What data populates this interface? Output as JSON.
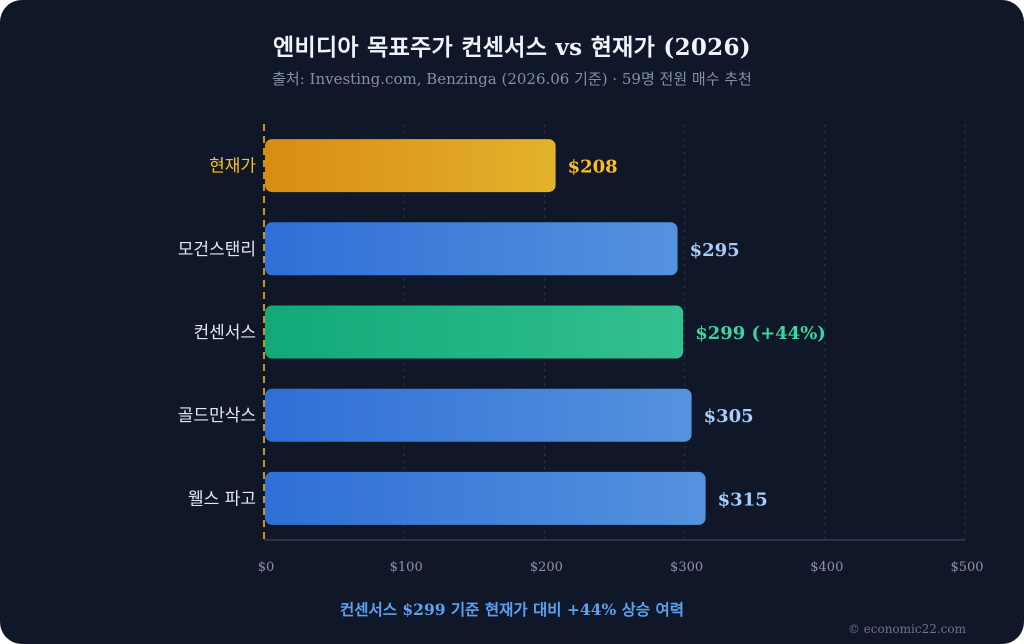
{
  "title": "엔비디아 목표주가 컨센서스 vs 현재가 (2026)",
  "subtitle": "출처: Investing.com, Benzinga (2026.06 기준) · 59명 전원 매수 추천",
  "footer_note": "컨센서스 $299 기준 현재가 대비 +44% 상승 여력",
  "credit": "© economic22.com",
  "chart_data": {
    "type": "bar",
    "orientation": "horizontal",
    "categories": [
      "현재가",
      "모건스탠리",
      "컨센서스",
      "골드만삭스",
      "웰스 파고"
    ],
    "values": [
      208,
      295,
      299,
      305,
      315
    ],
    "data_labels": [
      "$208",
      "$295",
      "$299 (+44%)",
      "$305",
      "$315"
    ],
    "bar_colors": [
      [
        "#d98c12",
        "#e3b22b"
      ],
      [
        "#2f6fd6",
        "#5592de"
      ],
      [
        "#12a87a",
        "#33c08f"
      ],
      [
        "#2f6fd6",
        "#5592de"
      ],
      [
        "#2f6fd6",
        "#5592de"
      ]
    ],
    "label_colors": [
      "#fbbf24",
      "#e2e8f0",
      "#e2e8f0",
      "#e2e8f0",
      "#e2e8f0"
    ],
    "value_label_colors": [
      "#fbbf24",
      "#a9cdf8",
      "#3fd3a0",
      "#a9cdf8",
      "#a9cdf8"
    ],
    "xlim": [
      0,
      500
    ],
    "xticks": [
      0,
      100,
      200,
      300,
      400,
      500
    ],
    "xtick_labels": [
      "$0",
      "$100",
      "$200",
      "$300",
      "$400",
      "$500"
    ],
    "reference_line": {
      "value": 0,
      "color": "#c8952a",
      "style": "dashed"
    },
    "grid": true
  }
}
